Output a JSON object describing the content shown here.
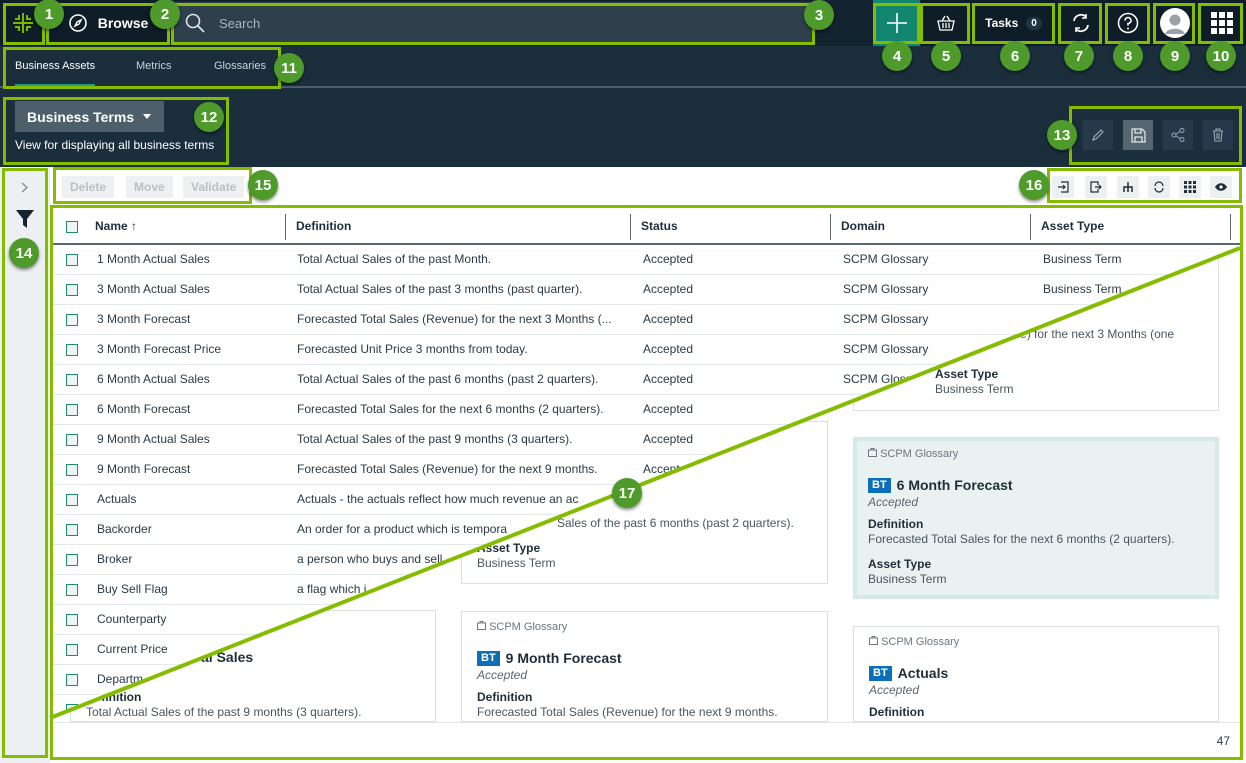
{
  "topbar": {
    "browse": "Browse",
    "search_placeholder": "Search",
    "tasks_label": "Tasks",
    "tasks_count": "0"
  },
  "tabs": [
    {
      "label": "Business Assets",
      "active": true
    },
    {
      "label": "Metrics"
    },
    {
      "label": "Glossaries"
    }
  ],
  "view": {
    "name": "Business Terms",
    "description": "View for displaying all business terms"
  },
  "toolbar": {
    "delete": "Delete",
    "move": "Move",
    "validate": "Validate"
  },
  "table": {
    "columns": [
      "Name",
      "Definition",
      "Status",
      "Domain",
      "Asset Type"
    ],
    "sort_indicator": "↑",
    "rows": [
      {
        "name": "1 Month Actual Sales",
        "definition": "Total Actual Sales of the past Month.",
        "status": "Accepted",
        "domain": "SCPM Glossary",
        "type": "Business Term"
      },
      {
        "name": "3 Month Actual Sales",
        "definition": "Total Actual Sales of the past 3 months (past quarter).",
        "status": "Accepted",
        "domain": "SCPM Glossary",
        "type": "Business Term"
      },
      {
        "name": "3 Month Forecast",
        "definition": "Forecasted Total Sales (Revenue) for the next 3 Months (...",
        "status": "Accepted",
        "domain": "SCPM Glossary",
        "type": ""
      },
      {
        "name": "3 Month Forecast Price",
        "definition": "Forecasted Unit Price 3 months from today.",
        "status": "Accepted",
        "domain": "SCPM Glossary",
        "type": ""
      },
      {
        "name": "6 Month Actual Sales",
        "definition": "Total Actual Sales of the past 6 months (past 2 quarters).",
        "status": "Accepted",
        "domain": "SCPM Glossary",
        "type": ""
      },
      {
        "name": "6 Month Forecast",
        "definition": "Forecasted Total Sales for the next 6 months (2 quarters).",
        "status": "Accepted",
        "domain": "",
        "type": ""
      },
      {
        "name": "9 Month Actual Sales",
        "definition": "Total Actual Sales of the past 9 months (3 quarters).",
        "status": "Accepted",
        "domain": "",
        "type": ""
      },
      {
        "name": "9 Month Forecast",
        "definition": "Forecasted Total Sales (Revenue) for the next 9 months.",
        "status": "Accepted",
        "domain": "",
        "type": ""
      },
      {
        "name": "Actuals",
        "definition": "Actuals - the actuals reflect how much revenue an ac",
        "status": "",
        "domain": "",
        "type": ""
      },
      {
        "name": "Backorder",
        "definition": "An order for a product which is tempora",
        "status": "",
        "domain": "",
        "type": ""
      },
      {
        "name": "Broker",
        "definition": "a person who buys and sell",
        "status": "",
        "domain": "",
        "type": ""
      },
      {
        "name": "Buy Sell Flag",
        "definition": "a flag which i",
        "status": "",
        "domain": "",
        "type": ""
      },
      {
        "name": "Counterparty",
        "definition": "",
        "status": "",
        "domain": "",
        "type": ""
      },
      {
        "name": "Current Price",
        "definition": "",
        "status": "",
        "domain": "",
        "type": ""
      },
      {
        "name": "Departm",
        "definition": "",
        "status": "",
        "domain": "",
        "type": ""
      },
      {
        "name": "",
        "definition": "",
        "status": "",
        "domain": "",
        "type": ""
      }
    ]
  },
  "cards": [
    {
      "glossary": "",
      "title": "",
      "status": "",
      "definition": "enue) for the next 3 Months (one",
      "asset_type": "Business Term"
    },
    {
      "glossary": "SCPM Glossary",
      "title": "6 Month Forecast",
      "status": "Accepted",
      "definition": "Forecasted Total Sales for the next 6 months (2 quarters).",
      "asset_type": "Business Term",
      "highlighted": true
    },
    {
      "glossary": "SCPM Glossary",
      "title": "Actuals",
      "status": "Accepted",
      "definition": "",
      "asset_type": ""
    },
    {
      "glossary": "",
      "title": "",
      "status": "",
      "definition": "Sales of the past 6 months (past 2 quarters).",
      "asset_type": "Business Term"
    },
    {
      "glossary": "SCPM Glossary",
      "title": "9 Month Forecast",
      "status": "Accepted",
      "definition": "Forecasted Total Sales (Revenue) for the next 9 months.",
      "asset_type": ""
    },
    {
      "glossary": "",
      "title": "al Sales",
      "status": "",
      "definition": "Total Actual Sales of the past 9 months (3 quarters).",
      "asset_type": ""
    }
  ],
  "card_labels": {
    "badge": "BT",
    "definition": "Definition",
    "asset_type": "Asset Type"
  },
  "footer": {
    "count": "47"
  },
  "annotations": [
    "1",
    "2",
    "3",
    "4",
    "5",
    "6",
    "7",
    "8",
    "9",
    "10",
    "11",
    "12",
    "13",
    "14",
    "15",
    "16",
    "17"
  ],
  "colors": {
    "annotation": "#84bd00",
    "badge": "#4e9a2b",
    "accent": "#1f9e8a",
    "add_button": "#13866f",
    "bt_badge": "#0d6fb8"
  }
}
